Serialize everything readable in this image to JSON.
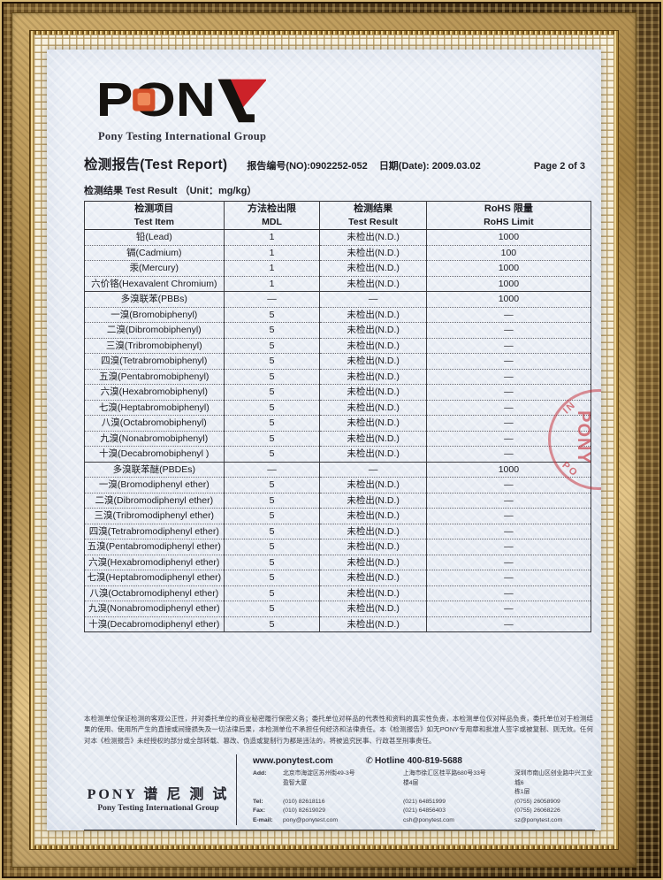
{
  "logo": {
    "brand": "PONY",
    "subtitle": "Pony Testing International Group"
  },
  "header": {
    "title": "检测报告(Test Report)",
    "report_no": "报告编号(NO):0902252-052",
    "date": "日期(Date): 2009.03.02",
    "page": "Page 2 of 3",
    "result_caption": "检测结果 Test Result （Unit：mg/kg）"
  },
  "table": {
    "columns": [
      {
        "zh": "检测项目",
        "en": "Test Item"
      },
      {
        "zh": "方法检出限",
        "en": "MDL"
      },
      {
        "zh": "检测结果",
        "en": "Test Result"
      },
      {
        "zh": "RoHS 限量",
        "en": "RoHS Limit"
      }
    ],
    "rows": [
      {
        "item": "铅(Lead)",
        "mdl": "1",
        "result": "未检出(N.D.)",
        "limit": "1000",
        "sep": "none"
      },
      {
        "item": "镉(Cadmium)",
        "mdl": "1",
        "result": "未检出(N.D.)",
        "limit": "100",
        "sep": "dotted"
      },
      {
        "item": "汞(Mercury)",
        "mdl": "1",
        "result": "未检出(N.D.)",
        "limit": "1000",
        "sep": "dotted"
      },
      {
        "item": "六价铬(Hexavalent Chromium)",
        "mdl": "1",
        "result": "未检出(N.D.)",
        "limit": "1000",
        "sep": "dotted"
      },
      {
        "item": "多溴联苯(PBBs)",
        "mdl": "—",
        "result": "—",
        "limit": "1000",
        "sep": "solid"
      },
      {
        "item": "一溴(Bromobiphenyl)",
        "mdl": "5",
        "result": "未检出(N.D.)",
        "limit": "—",
        "sep": "dotted"
      },
      {
        "item": "二溴(Dibromobiphenyl)",
        "mdl": "5",
        "result": "未检出(N.D.)",
        "limit": "—",
        "sep": "dotted"
      },
      {
        "item": "三溴(Tribromobiphenyl)",
        "mdl": "5",
        "result": "未检出(N.D.)",
        "limit": "—",
        "sep": "dotted"
      },
      {
        "item": "四溴(Tetrabromobiphenyl)",
        "mdl": "5",
        "result": "未检出(N.D.)",
        "limit": "—",
        "sep": "dotted"
      },
      {
        "item": "五溴(Pentabromobiphenyl)",
        "mdl": "5",
        "result": "未检出(N.D.)",
        "limit": "—",
        "sep": "dotted"
      },
      {
        "item": "六溴(Hexabromobiphenyl)",
        "mdl": "5",
        "result": "未检出(N.D.)",
        "limit": "—",
        "sep": "dotted"
      },
      {
        "item": "七溴(Heptabromobiphenyl)",
        "mdl": "5",
        "result": "未检出(N.D.)",
        "limit": "—",
        "sep": "dotted"
      },
      {
        "item": "八溴(Octabromobiphenyl)",
        "mdl": "5",
        "result": "未检出(N.D.)",
        "limit": "—",
        "sep": "dotted"
      },
      {
        "item": "九溴(Nonabromobiphenyl)",
        "mdl": "5",
        "result": "未检出(N.D.)",
        "limit": "—",
        "sep": "dotted"
      },
      {
        "item": "十溴(Decabromobiphenyl )",
        "mdl": "5",
        "result": "未检出(N.D.)",
        "limit": "—",
        "sep": "dotted"
      },
      {
        "item": "多溴联苯醚(PBDEs)",
        "mdl": "—",
        "result": "—",
        "limit": "1000",
        "sep": "solid"
      },
      {
        "item": "一溴(Bromodiphenyl ether)",
        "mdl": "5",
        "result": "未检出(N.D.)",
        "limit": "—",
        "sep": "dotted"
      },
      {
        "item": "二溴(Dibromodiphenyl ether)",
        "mdl": "5",
        "result": "未检出(N.D.)",
        "limit": "—",
        "sep": "dotted"
      },
      {
        "item": "三溴(Tribromodiphenyl ether)",
        "mdl": "5",
        "result": "未检出(N.D.)",
        "limit": "—",
        "sep": "dotted"
      },
      {
        "item": "四溴(Tetrabromodiphenyl ether)",
        "mdl": "5",
        "result": "未检出(N.D.)",
        "limit": "—",
        "sep": "dotted"
      },
      {
        "item": "五溴(Pentabromodiphenyl ether)",
        "mdl": "5",
        "result": "未检出(N.D.)",
        "limit": "—",
        "sep": "dotted"
      },
      {
        "item": "六溴(Hexabromodiphenyl ether)",
        "mdl": "5",
        "result": "未检出(N.D.)",
        "limit": "—",
        "sep": "dotted"
      },
      {
        "item": "七溴(Heptabromodiphenyl ether)",
        "mdl": "5",
        "result": "未检出(N.D.)",
        "limit": "—",
        "sep": "dotted"
      },
      {
        "item": "八溴(Octabromodiphenyl ether)",
        "mdl": "5",
        "result": "未检出(N.D.)",
        "limit": "—",
        "sep": "dotted"
      },
      {
        "item": "九溴(Nonabromodiphenyl ether)",
        "mdl": "5",
        "result": "未检出(N.D.)",
        "limit": "—",
        "sep": "dotted"
      },
      {
        "item": "十溴(Decabromodiphenyl ether)",
        "mdl": "5",
        "result": "未检出(N.D.)",
        "limit": "—",
        "sep": "dotted"
      }
    ]
  },
  "stamp": {
    "arc_top": "IN",
    "arc_bottom": "PO",
    "center": "PONY"
  },
  "disclaimer": "本检测单位保证检测的客观公正性，并对委托单位的商业秘密履行保密义务；委托单位对样品的代表性和资料的真实性负责，本检测单位仅对样品负责，委托单位对于检测结果的使用、使用所产生的直接或间接损失及一切法律后果，本检测单位不承担任何经济和法律责任。本《检测报告》如无PONY专用章和批准人签字或被复制、则无效。任何对本《检测报告》未经授权的部分或全部转载、篡改、伪造或复制行为都是违法的，将被追究民事、行政甚至刑事责任。",
  "footer": {
    "website": "www.ponytest.com",
    "phone_icon": "✆",
    "hotline": "Hotline 400-819-5688",
    "company_zh": "PONY 谱 尼 测 试",
    "company_en": "Pony Testing International Group",
    "labels": {
      "add": "Add:",
      "tel": "Tel:",
      "fax": "Fax:",
      "email": "E-mail:"
    },
    "offices": [
      {
        "add": "北京市海淀区苏州街49-3号\n盈智大厦",
        "tel": "(010) 82618116",
        "fax": "(010) 82619029",
        "email": "pony@ponytest.com"
      },
      {
        "add": "上海市徐汇区桂平路680号33号\n楼4层",
        "tel": "(021) 64851999",
        "fax": "(021) 64856403",
        "email": "csh@ponytest.com"
      },
      {
        "add": "深圳市南山区创业路中兴工业城6\n栋1层",
        "tel": "(0755) 26058909",
        "fax": "(0755) 26068226",
        "email": "sz@ponytest.com"
      }
    ]
  },
  "colors": {
    "accent_red": "#cc2229",
    "logo_black": "#15120f",
    "frame_gold": "#b08d52",
    "paper": "#edf1f7"
  }
}
